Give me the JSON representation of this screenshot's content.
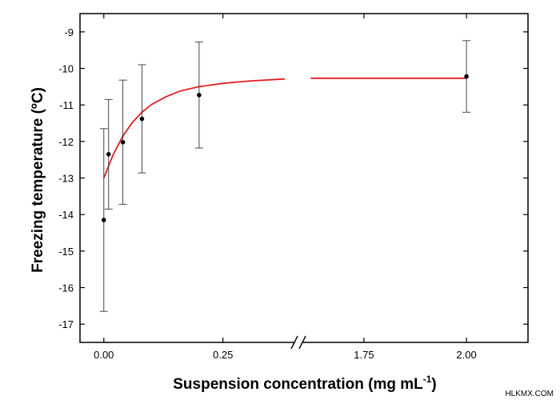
{
  "chart_data": {
    "type": "scatter",
    "xlabel": "Suspension concentration  (mg mL",
    "xlabel_sup": "-1",
    "xlabel_close": ")",
    "ylabel": "Freezing temperature (ºC)",
    "ylim": [
      -17.5,
      -8.5
    ],
    "yticks": [
      -9,
      -10,
      -11,
      -12,
      -13,
      -14,
      -15,
      -16,
      -17
    ],
    "ytick_labels": [
      "-9",
      "-10",
      "-11",
      "-12",
      "-13",
      "-14",
      "-15",
      "-16",
      "-17"
    ],
    "x_broken_axis": true,
    "x_segments": [
      {
        "range": [
          -0.05,
          0.4
        ],
        "ticks": [
          0.0,
          0.25
        ],
        "tick_labels": [
          "0.00",
          "0.25"
        ]
      },
      {
        "range": [
          1.6,
          2.15
        ],
        "ticks": [
          1.75,
          2.0
        ],
        "tick_labels": [
          "1.75",
          "2.00"
        ]
      }
    ],
    "series": [
      {
        "points": [
          {
            "x": 0.0,
            "y": -14.15,
            "err": 2.5
          },
          {
            "x": 0.01,
            "y": -12.35,
            "err": 1.5
          },
          {
            "x": 0.04,
            "y": -12.02,
            "err": 1.7
          },
          {
            "x": 0.08,
            "y": -11.38,
            "err": 1.48
          },
          {
            "x": 0.2,
            "y": -10.73,
            "err": 1.45
          },
          {
            "x": 2.0,
            "y": -10.22,
            "err": 0.98
          }
        ]
      }
    ],
    "fit": {
      "type": "exponential",
      "color": "#e02020",
      "points": [
        [
          0.0,
          -13.0
        ],
        [
          0.02,
          -12.35
        ],
        [
          0.04,
          -11.85
        ],
        [
          0.06,
          -11.48
        ],
        [
          0.08,
          -11.2
        ],
        [
          0.1,
          -10.99
        ],
        [
          0.13,
          -10.78
        ],
        [
          0.16,
          -10.62
        ],
        [
          0.2,
          -10.5
        ],
        [
          0.25,
          -10.41
        ],
        [
          0.3,
          -10.35
        ],
        [
          0.35,
          -10.31
        ],
        [
          0.38,
          -10.29
        ]
      ],
      "points_after_break": [
        [
          1.62,
          -10.27
        ],
        [
          1.8,
          -10.27
        ],
        [
          2.0,
          -10.27
        ]
      ]
    },
    "grid": false,
    "legend": "none",
    "colors": {
      "points": "#000000",
      "fit": "#e02020",
      "axes": "#000000"
    }
  },
  "watermark": "HLKMX.COM"
}
